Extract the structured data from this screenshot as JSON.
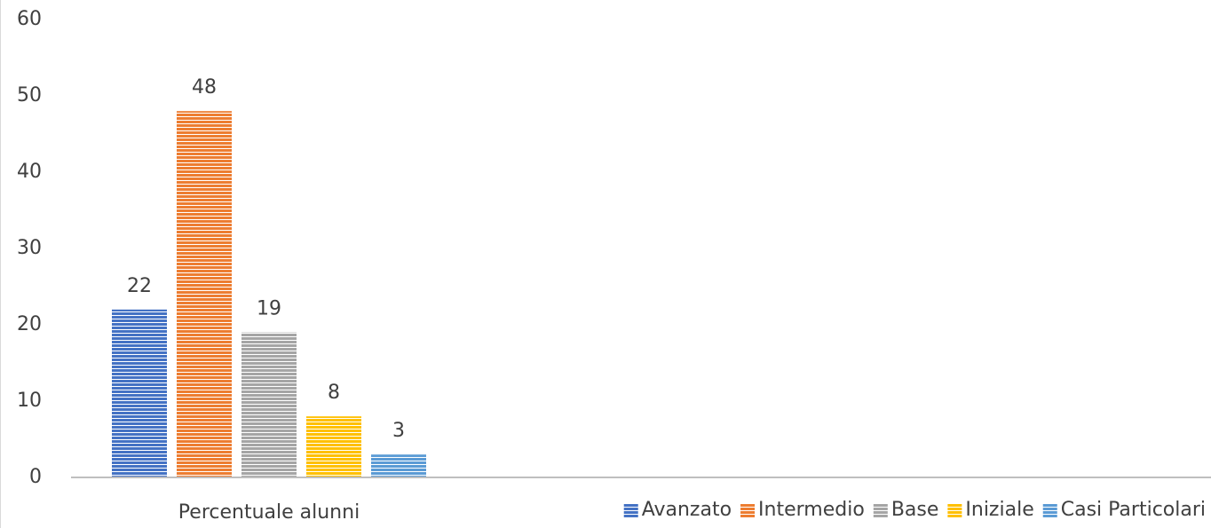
{
  "chart_data": {
    "type": "bar",
    "categories": [
      "Percentuale alunni"
    ],
    "series": [
      {
        "name": "Avanzato",
        "color": "#4472c4",
        "values": [
          22
        ]
      },
      {
        "name": "Intermedio",
        "color": "#ed7d31",
        "values": [
          48
        ]
      },
      {
        "name": "Base",
        "color": "#a5a5a5",
        "values": [
          19
        ]
      },
      {
        "name": "Iniziale",
        "color": "#ffc000",
        "values": [
          8
        ]
      },
      {
        "name": "Casi Particolari",
        "color": "#5b9bd5",
        "values": [
          3
        ]
      }
    ],
    "ylim": [
      0,
      60
    ],
    "yticks": [
      0,
      10,
      20,
      30,
      40,
      50,
      60
    ],
    "grid": false,
    "legend": "bottom-right",
    "pattern": "horizontal-stripes"
  }
}
